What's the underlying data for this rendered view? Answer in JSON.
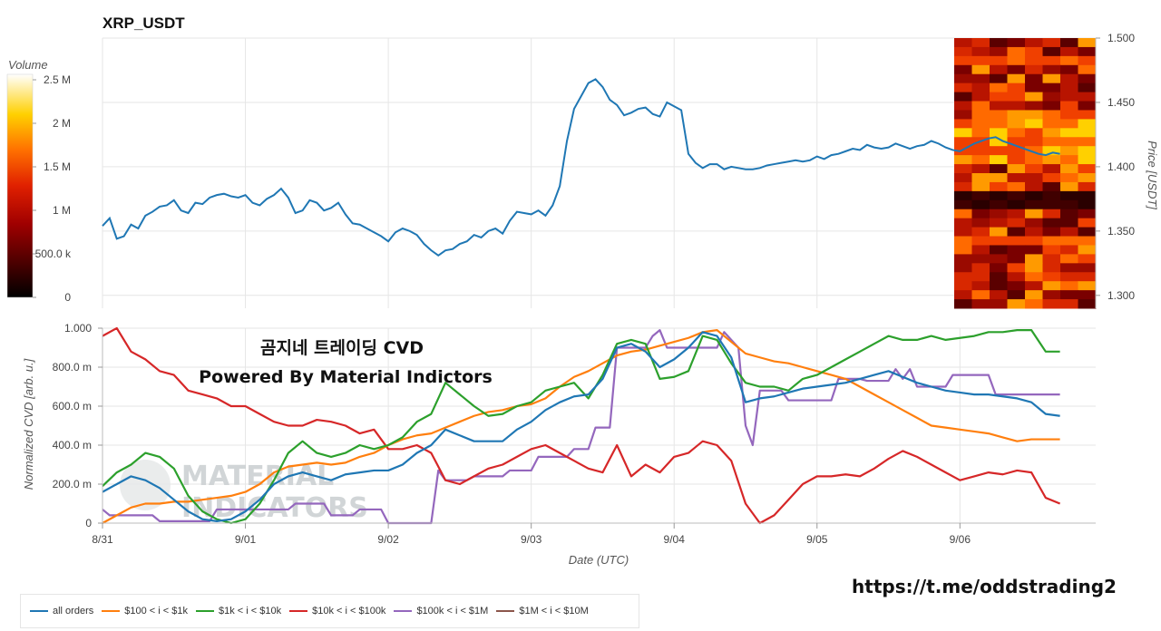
{
  "colors": {
    "all": "#1f77b4",
    "orange": "#ff7f0e",
    "green": "#2ca02c",
    "red": "#d62728",
    "purple": "#9467bd",
    "brown": "#8c564b"
  },
  "overlay": {
    "title_line1": "곰지네 트레이딩 CVD",
    "title_line2": "Powered By Material Indictors",
    "watermark_line1": "MATERIAL",
    "watermark_line2": "INDICATORS",
    "telegram_link": "https://t.me/oddstrading2"
  },
  "chart_data": [
    {
      "type": "line",
      "title": "XRP_USDT",
      "ylabel": "Price [USDT]",
      "ylim": [
        1.29,
        1.5
      ],
      "yticks": [
        "1.300",
        "1.350",
        "1.400",
        "1.450",
        "1.500"
      ],
      "x_range_days": [
        0,
        6.95
      ],
      "colorbar": {
        "label": "Volume",
        "ticks": [
          "0",
          "500.0 k",
          "1 M",
          "1.5 M",
          "2 M",
          "2.5 M"
        ]
      },
      "series": [
        {
          "name": "price",
          "x": [
            0,
            0.05,
            0.1,
            0.15,
            0.2,
            0.25,
            0.3,
            0.35,
            0.4,
            0.45,
            0.5,
            0.55,
            0.6,
            0.65,
            0.7,
            0.75,
            0.8,
            0.85,
            0.9,
            0.95,
            1.0,
            1.05,
            1.1,
            1.15,
            1.2,
            1.25,
            1.3,
            1.35,
            1.4,
            1.45,
            1.5,
            1.55,
            1.6,
            1.65,
            1.7,
            1.75,
            1.8,
            1.85,
            1.9,
            1.95,
            2.0,
            2.05,
            2.1,
            2.15,
            2.2,
            2.25,
            2.3,
            2.35,
            2.4,
            2.45,
            2.5,
            2.55,
            2.6,
            2.65,
            2.7,
            2.75,
            2.8,
            2.85,
            2.9,
            2.95,
            3.0,
            3.05,
            3.1,
            3.15,
            3.2,
            3.25,
            3.3,
            3.35,
            3.4,
            3.45,
            3.5,
            3.55,
            3.6,
            3.65,
            3.7,
            3.75,
            3.8,
            3.85,
            3.9,
            3.95,
            4.0,
            4.05,
            4.1,
            4.15,
            4.2,
            4.25,
            4.3,
            4.35,
            4.4,
            4.45,
            4.5,
            4.55,
            4.6,
            4.65,
            4.7,
            4.75,
            4.8,
            4.85,
            4.9,
            4.95,
            5.0,
            5.05,
            5.1,
            5.15,
            5.2,
            5.25,
            5.3,
            5.35,
            5.4,
            5.45,
            5.5,
            5.55,
            5.6,
            5.65,
            5.7,
            5.75,
            5.8,
            5.85,
            5.9,
            5.95,
            6.0,
            6.05,
            6.1,
            6.15,
            6.2,
            6.25,
            6.3,
            6.35,
            6.4,
            6.45,
            6.5,
            6.55,
            6.6,
            6.65,
            6.7
          ],
          "values": [
            1.354,
            1.36,
            1.344,
            1.346,
            1.355,
            1.352,
            1.362,
            1.365,
            1.369,
            1.37,
            1.374,
            1.366,
            1.364,
            1.372,
            1.371,
            1.376,
            1.378,
            1.379,
            1.377,
            1.376,
            1.378,
            1.372,
            1.37,
            1.375,
            1.378,
            1.383,
            1.376,
            1.364,
            1.366,
            1.374,
            1.372,
            1.366,
            1.368,
            1.372,
            1.363,
            1.356,
            1.355,
            1.352,
            1.349,
            1.346,
            1.342,
            1.349,
            1.352,
            1.35,
            1.347,
            1.34,
            1.335,
            1.331,
            1.335,
            1.336,
            1.34,
            1.342,
            1.347,
            1.345,
            1.35,
            1.352,
            1.348,
            1.358,
            1.365,
            1.364,
            1.363,
            1.366,
            1.362,
            1.37,
            1.385,
            1.42,
            1.445,
            1.455,
            1.465,
            1.468,
            1.462,
            1.452,
            1.448,
            1.44,
            1.442,
            1.445,
            1.446,
            1.441,
            1.439,
            1.45,
            1.447,
            1.444,
            1.41,
            1.403,
            1.399,
            1.402,
            1.402,
            1.398,
            1.4,
            1.399,
            1.398,
            1.398,
            1.399,
            1.401,
            1.402,
            1.403,
            1.404,
            1.405,
            1.404,
            1.405,
            1.408,
            1.406,
            1.409,
            1.41,
            1.412,
            1.414,
            1.413,
            1.417,
            1.415,
            1.414,
            1.415,
            1.418,
            1.416,
            1.414,
            1.416,
            1.417,
            1.42,
            1.418,
            1.415,
            1.413,
            1.412,
            1.415,
            1.418,
            1.42,
            1.422,
            1.423,
            1.42,
            1.418,
            1.416,
            1.414,
            1.412,
            1.41,
            1.409,
            1.411,
            1.41
          ]
        }
      ]
    },
    {
      "type": "line",
      "xlabel": "Date (UTC)",
      "ylabel": "Normalized CVD [arb. u.]",
      "ylim": [
        0,
        1
      ],
      "yticks": [
        "0",
        "200.0 m",
        "400.0 m",
        "600.0 m",
        "800.0 m",
        "1.000"
      ],
      "x_range_days": [
        0,
        6.95
      ],
      "xticks": [
        "8/31",
        "9/01",
        "9/02",
        "9/03",
        "9/04",
        "9/05",
        "9/06"
      ],
      "series": [
        {
          "name": "all orders",
          "x": [
            0,
            0.1,
            0.2,
            0.3,
            0.4,
            0.5,
            0.6,
            0.7,
            0.8,
            0.9,
            1.0,
            1.1,
            1.2,
            1.3,
            1.4,
            1.5,
            1.6,
            1.7,
            1.8,
            1.9,
            2.0,
            2.1,
            2.2,
            2.3,
            2.4,
            2.5,
            2.6,
            2.7,
            2.8,
            2.9,
            3.0,
            3.1,
            3.2,
            3.3,
            3.4,
            3.5,
            3.6,
            3.7,
            3.8,
            3.9,
            4.0,
            4.1,
            4.2,
            4.3,
            4.4,
            4.5,
            4.6,
            4.7,
            4.8,
            4.9,
            5.0,
            5.1,
            5.2,
            5.3,
            5.4,
            5.5,
            5.6,
            5.7,
            5.8,
            5.9,
            6.0,
            6.1,
            6.2,
            6.3,
            6.4,
            6.5,
            6.6,
            6.7
          ],
          "values": [
            0.16,
            0.2,
            0.24,
            0.22,
            0.18,
            0.12,
            0.06,
            0.02,
            0.01,
            0.02,
            0.06,
            0.12,
            0.2,
            0.24,
            0.26,
            0.24,
            0.22,
            0.25,
            0.26,
            0.27,
            0.27,
            0.3,
            0.36,
            0.4,
            0.48,
            0.45,
            0.42,
            0.42,
            0.42,
            0.48,
            0.52,
            0.58,
            0.62,
            0.65,
            0.66,
            0.74,
            0.9,
            0.92,
            0.88,
            0.8,
            0.84,
            0.9,
            0.98,
            0.96,
            0.85,
            0.62,
            0.64,
            0.65,
            0.67,
            0.69,
            0.7,
            0.71,
            0.72,
            0.74,
            0.76,
            0.78,
            0.75,
            0.72,
            0.7,
            0.68,
            0.67,
            0.66,
            0.66,
            0.65,
            0.64,
            0.62,
            0.56,
            0.55
          ]
        },
        {
          "name": "$100 < i < $1k",
          "x": [
            0,
            0.1,
            0.2,
            0.3,
            0.4,
            0.5,
            0.6,
            0.7,
            0.8,
            0.9,
            1.0,
            1.1,
            1.2,
            1.3,
            1.4,
            1.5,
            1.6,
            1.7,
            1.8,
            1.9,
            2.0,
            2.1,
            2.2,
            2.3,
            2.4,
            2.5,
            2.6,
            2.7,
            2.8,
            2.9,
            3.0,
            3.1,
            3.2,
            3.3,
            3.4,
            3.5,
            3.6,
            3.7,
            3.8,
            3.9,
            4.0,
            4.1,
            4.2,
            4.3,
            4.4,
            4.5,
            4.6,
            4.7,
            4.8,
            4.9,
            5.0,
            5.1,
            5.2,
            5.3,
            5.4,
            5.5,
            5.6,
            5.7,
            5.8,
            5.9,
            6.0,
            6.1,
            6.2,
            6.3,
            6.4,
            6.5,
            6.6,
            6.7
          ],
          "values": [
            0.0,
            0.04,
            0.08,
            0.1,
            0.1,
            0.11,
            0.11,
            0.12,
            0.13,
            0.14,
            0.16,
            0.2,
            0.26,
            0.29,
            0.3,
            0.31,
            0.3,
            0.31,
            0.34,
            0.36,
            0.4,
            0.43,
            0.45,
            0.46,
            0.49,
            0.52,
            0.55,
            0.57,
            0.58,
            0.6,
            0.61,
            0.64,
            0.7,
            0.75,
            0.78,
            0.82,
            0.86,
            0.88,
            0.89,
            0.91,
            0.93,
            0.95,
            0.98,
            0.99,
            0.93,
            0.87,
            0.85,
            0.83,
            0.82,
            0.8,
            0.78,
            0.76,
            0.74,
            0.7,
            0.66,
            0.62,
            0.58,
            0.54,
            0.5,
            0.49,
            0.48,
            0.47,
            0.46,
            0.44,
            0.42,
            0.43,
            0.43,
            0.43
          ]
        },
        {
          "name": "$1k < i < $10k",
          "x": [
            0,
            0.1,
            0.2,
            0.3,
            0.4,
            0.5,
            0.6,
            0.7,
            0.8,
            0.9,
            1.0,
            1.1,
            1.2,
            1.3,
            1.4,
            1.5,
            1.6,
            1.7,
            1.8,
            1.9,
            2.0,
            2.1,
            2.2,
            2.3,
            2.4,
            2.5,
            2.6,
            2.7,
            2.8,
            2.9,
            3.0,
            3.1,
            3.2,
            3.3,
            3.4,
            3.5,
            3.6,
            3.7,
            3.8,
            3.9,
            4.0,
            4.1,
            4.2,
            4.3,
            4.4,
            4.5,
            4.6,
            4.7,
            4.8,
            4.9,
            5.0,
            5.1,
            5.2,
            5.3,
            5.4,
            5.5,
            5.6,
            5.7,
            5.8,
            5.9,
            6.0,
            6.1,
            6.2,
            6.3,
            6.4,
            6.5,
            6.6,
            6.7
          ],
          "values": [
            0.19,
            0.26,
            0.3,
            0.36,
            0.34,
            0.28,
            0.14,
            0.06,
            0.02,
            0.0,
            0.02,
            0.1,
            0.22,
            0.36,
            0.42,
            0.36,
            0.34,
            0.36,
            0.4,
            0.38,
            0.4,
            0.44,
            0.52,
            0.56,
            0.72,
            0.66,
            0.6,
            0.55,
            0.56,
            0.6,
            0.62,
            0.68,
            0.7,
            0.72,
            0.64,
            0.76,
            0.92,
            0.94,
            0.92,
            0.74,
            0.75,
            0.78,
            0.96,
            0.94,
            0.82,
            0.72,
            0.7,
            0.7,
            0.68,
            0.74,
            0.76,
            0.8,
            0.84,
            0.88,
            0.92,
            0.96,
            0.94,
            0.94,
            0.96,
            0.94,
            0.95,
            0.96,
            0.98,
            0.98,
            0.99,
            0.99,
            0.88,
            0.88
          ]
        },
        {
          "name": "$10k < i < $100k",
          "x": [
            0,
            0.1,
            0.2,
            0.3,
            0.4,
            0.5,
            0.6,
            0.7,
            0.8,
            0.9,
            1.0,
            1.1,
            1.2,
            1.3,
            1.4,
            1.5,
            1.6,
            1.7,
            1.8,
            1.9,
            2.0,
            2.1,
            2.2,
            2.3,
            2.4,
            2.5,
            2.6,
            2.7,
            2.8,
            2.9,
            3.0,
            3.1,
            3.2,
            3.3,
            3.4,
            3.5,
            3.6,
            3.7,
            3.8,
            3.9,
            4.0,
            4.1,
            4.2,
            4.3,
            4.4,
            4.5,
            4.6,
            4.7,
            4.8,
            4.9,
            5.0,
            5.1,
            5.2,
            5.3,
            5.4,
            5.5,
            5.6,
            5.7,
            5.8,
            5.9,
            6.0,
            6.1,
            6.2,
            6.3,
            6.4,
            6.5,
            6.6,
            6.7
          ],
          "values": [
            0.96,
            1.0,
            0.88,
            0.84,
            0.78,
            0.76,
            0.68,
            0.66,
            0.64,
            0.6,
            0.6,
            0.56,
            0.52,
            0.5,
            0.5,
            0.53,
            0.52,
            0.5,
            0.46,
            0.48,
            0.38,
            0.38,
            0.4,
            0.36,
            0.22,
            0.2,
            0.24,
            0.28,
            0.3,
            0.34,
            0.38,
            0.4,
            0.36,
            0.32,
            0.28,
            0.26,
            0.4,
            0.24,
            0.3,
            0.26,
            0.34,
            0.36,
            0.42,
            0.4,
            0.32,
            0.1,
            0.0,
            0.04,
            0.12,
            0.2,
            0.24,
            0.24,
            0.25,
            0.24,
            0.28,
            0.33,
            0.37,
            0.34,
            0.3,
            0.26,
            0.22,
            0.24,
            0.26,
            0.25,
            0.27,
            0.26,
            0.13,
            0.1
          ]
        },
        {
          "name": "$100k < i < $1M",
          "x": [
            0,
            0.05,
            0.35,
            0.4,
            0.75,
            0.8,
            1.3,
            1.35,
            1.55,
            1.6,
            1.75,
            1.8,
            1.95,
            2.0,
            2.3,
            2.35,
            2.4,
            2.55,
            2.6,
            2.8,
            2.85,
            3.0,
            3.05,
            3.25,
            3.3,
            3.4,
            3.45,
            3.55,
            3.6,
            3.8,
            3.85,
            3.9,
            3.95,
            4.0,
            4.3,
            4.35,
            4.45,
            4.5,
            4.55,
            4.6,
            4.75,
            4.8,
            5.1,
            5.15,
            5.3,
            5.35,
            5.5,
            5.55,
            5.6,
            5.65,
            5.7,
            5.9,
            5.95,
            6.2,
            6.25,
            6.45,
            6.5,
            6.7
          ],
          "values": [
            0.07,
            0.04,
            0.04,
            0.01,
            0.01,
            0.07,
            0.07,
            0.1,
            0.1,
            0.04,
            0.04,
            0.07,
            0.07,
            0.0,
            0.0,
            0.27,
            0.22,
            0.22,
            0.24,
            0.24,
            0.27,
            0.27,
            0.34,
            0.34,
            0.38,
            0.38,
            0.49,
            0.49,
            0.9,
            0.9,
            0.96,
            0.99,
            0.9,
            0.9,
            0.9,
            0.98,
            0.9,
            0.5,
            0.4,
            0.68,
            0.68,
            0.63,
            0.63,
            0.74,
            0.74,
            0.73,
            0.73,
            0.79,
            0.74,
            0.79,
            0.7,
            0.7,
            0.76,
            0.76,
            0.66,
            0.66,
            0.66,
            0.66
          ]
        },
        {
          "name": "$1M < i < $10M",
          "x": [],
          "values": []
        }
      ]
    }
  ]
}
